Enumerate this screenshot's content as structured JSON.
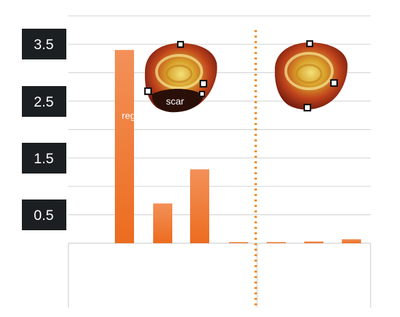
{
  "chart_data": {
    "type": "bar",
    "title": "",
    "xlabel": "",
    "ylabel": "",
    "ylim": [
      0,
      4.0
    ],
    "ytick_labels": [
      "0.5",
      "1.5",
      "2.5",
      "3.5"
    ],
    "ytick_values": [
      0.5,
      1.5,
      2.5,
      3.5
    ],
    "grid": true,
    "legend": "none",
    "colors": {
      "bar": "#ee7424",
      "bar_light": "#f29055",
      "divider": "#f28a1e"
    },
    "groups": [
      {
        "name": "",
        "values": [
          3.4,
          0.7,
          1.3,
          0.02
        ]
      },
      {
        "name": "",
        "values": [
          0.02,
          0.03,
          0.07
        ]
      }
    ],
    "annotations": [
      {
        "text": "scar"
      },
      {
        "text": "region"
      }
    ]
  },
  "icons": [
    "heart-scar-image",
    "heart-healthy-image"
  ]
}
